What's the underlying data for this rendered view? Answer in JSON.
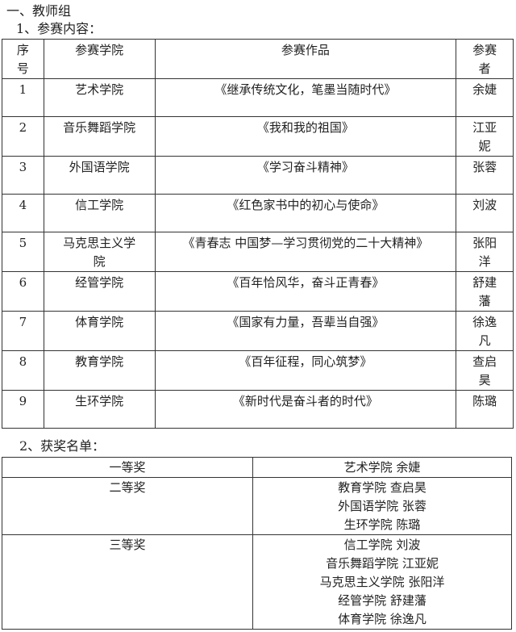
{
  "section_title": "一、教师组",
  "subsection_1": "1、参赛内容：",
  "entries_table": {
    "headers": [
      "序号",
      "参赛学院",
      "参赛作品",
      "参赛者"
    ],
    "rows": [
      [
        "1",
        "艺术学院",
        "《继承传统文化，笔墨当随时代》",
        "余婕"
      ],
      [
        "2",
        "音乐舞蹈学院",
        "《我和我的祖国》",
        "江亚妮"
      ],
      [
        "3",
        "外国语学院",
        "《学习奋斗精神》",
        "张蓉"
      ],
      [
        "4",
        "信工学院",
        "《红色家书中的初心与使命》",
        "刘波"
      ],
      [
        "5",
        "马克思主义学院",
        "《青春志 中国梦—学习贯彻党的二十大精神》",
        "张阳洋"
      ],
      [
        "6",
        "经管学院",
        "《百年恰风华，奋斗正青春》",
        "舒建藩"
      ],
      [
        "7",
        "体育学院",
        "《国家有力量，吾辈当自强》",
        "徐逸凡"
      ],
      [
        "8",
        "教育学院",
        "《百年征程，同心筑梦》",
        "查启昊"
      ],
      [
        "9",
        "生环学院",
        "《新时代是奋斗者的时代》",
        "陈璐"
      ]
    ]
  },
  "subsection_2": "2、获奖名单：",
  "awards_table": [
    {
      "prize": "一等奖",
      "winners": [
        "艺术学院 余婕"
      ]
    },
    {
      "prize": "二等奖",
      "winners": [
        "教育学院 查启昊",
        "外国语学院 张蓉",
        "生环学院 陈璐"
      ]
    },
    {
      "prize": "三等奖",
      "winners": [
        "信工学院 刘波",
        "音乐舞蹈学院 江亚妮",
        "马克思主义学院 张阳洋",
        "经管学院 舒建藩",
        "体育学院 徐逸凡"
      ]
    }
  ]
}
